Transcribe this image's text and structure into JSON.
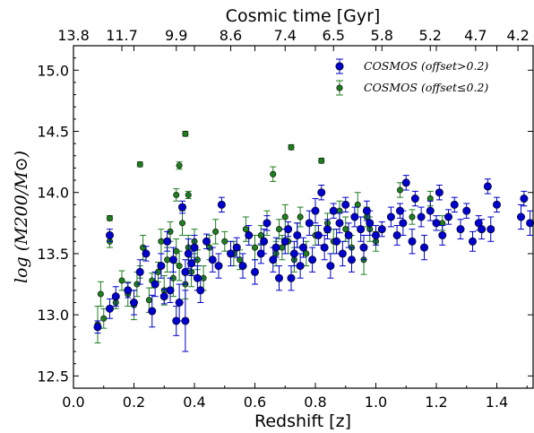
{
  "chart_data": {
    "type": "scatter",
    "title": "",
    "xlabel": "Redshift [z]",
    "ylabel": "log  (M200/M⊙)",
    "top_xlabel": "Cosmic time [Gyr]",
    "xlim": [
      0.0,
      1.52
    ],
    "ylim": [
      12.4,
      15.2
    ],
    "x_ticks": [
      0.0,
      0.2,
      0.4,
      0.6,
      0.8,
      1.0,
      1.2,
      1.4
    ],
    "x_tick_labels": [
      "0.0",
      "0.2",
      "0.4",
      "0.6",
      "0.8",
      "1.0",
      "1.2",
      "1.4"
    ],
    "y_ticks": [
      12.5,
      13.0,
      13.5,
      14.0,
      14.5,
      15.0
    ],
    "y_tick_labels": [
      "12.5",
      "13.0",
      "13.5",
      "14.0",
      "14.5",
      "15.0"
    ],
    "top_ticks": [
      {
        "z": 0.0,
        "label": "13.8"
      },
      {
        "z": 0.16,
        "label": "11.7"
      },
      {
        "z": 0.34,
        "label": "9.9"
      },
      {
        "z": 0.52,
        "label": "8.6"
      },
      {
        "z": 0.7,
        "label": "7.4"
      },
      {
        "z": 0.86,
        "label": "6.5"
      },
      {
        "z": 1.02,
        "label": "5.8"
      },
      {
        "z": 1.18,
        "label": "5.2"
      },
      {
        "z": 1.33,
        "label": "4.7"
      },
      {
        "z": 1.47,
        "label": "4.2"
      }
    ],
    "grid": false,
    "legend_position": "top-right",
    "series": [
      {
        "name": "COSMOS  (offset>0.2)",
        "color": "#0000cc",
        "marker": "large-circle",
        "points": [
          [
            0.08,
            12.9,
            0.05
          ],
          [
            0.12,
            13.05,
            0.08
          ],
          [
            0.12,
            13.65,
            0.05
          ],
          [
            0.14,
            13.15,
            0.08
          ],
          [
            0.18,
            13.2,
            0.06
          ],
          [
            0.2,
            13.1,
            0.1
          ],
          [
            0.22,
            13.35,
            0.1
          ],
          [
            0.24,
            13.5,
            0.06
          ],
          [
            0.26,
            13.03,
            0.13
          ],
          [
            0.27,
            13.25,
            0.1
          ],
          [
            0.29,
            13.4,
            0.1
          ],
          [
            0.3,
            13.15,
            0.06
          ],
          [
            0.31,
            13.6,
            0.08
          ],
          [
            0.32,
            13.2,
            0.1
          ],
          [
            0.33,
            13.45,
            0.1
          ],
          [
            0.34,
            12.95,
            0.12
          ],
          [
            0.35,
            13.1,
            0.15
          ],
          [
            0.36,
            13.88,
            0.05
          ],
          [
            0.37,
            12.95,
            0.25
          ],
          [
            0.37,
            13.35,
            0.1
          ],
          [
            0.38,
            13.5,
            0.12
          ],
          [
            0.39,
            13.42,
            0.1
          ],
          [
            0.4,
            13.55,
            0.1
          ],
          [
            0.41,
            13.3,
            0.1
          ],
          [
            0.42,
            13.2,
            0.1
          ],
          [
            0.44,
            13.6,
            0.06
          ],
          [
            0.46,
            13.45,
            0.1
          ],
          [
            0.48,
            13.4,
            0.1
          ],
          [
            0.49,
            13.9,
            0.06
          ],
          [
            0.52,
            13.5,
            0.1
          ],
          [
            0.54,
            13.55,
            0.08
          ],
          [
            0.56,
            13.4,
            0.1
          ],
          [
            0.58,
            13.65,
            0.08
          ],
          [
            0.6,
            13.35,
            0.1
          ],
          [
            0.62,
            13.5,
            0.08
          ],
          [
            0.63,
            13.6,
            0.1
          ],
          [
            0.64,
            13.75,
            0.06
          ],
          [
            0.66,
            13.45,
            0.1
          ],
          [
            0.67,
            13.55,
            0.08
          ],
          [
            0.68,
            13.3,
            0.1
          ],
          [
            0.7,
            13.6,
            0.1
          ],
          [
            0.71,
            13.7,
            0.06
          ],
          [
            0.72,
            13.3,
            0.1
          ],
          [
            0.73,
            13.5,
            0.1
          ],
          [
            0.74,
            13.65,
            0.1
          ],
          [
            0.75,
            13.4,
            0.1
          ],
          [
            0.76,
            13.55,
            0.08
          ],
          [
            0.78,
            13.75,
            0.1
          ],
          [
            0.79,
            13.45,
            0.1
          ],
          [
            0.8,
            13.85,
            0.1
          ],
          [
            0.81,
            13.65,
            0.08
          ],
          [
            0.82,
            14.0,
            0.06
          ],
          [
            0.83,
            13.55,
            0.1
          ],
          [
            0.84,
            13.7,
            0.08
          ],
          [
            0.85,
            13.4,
            0.1
          ],
          [
            0.86,
            13.85,
            0.06
          ],
          [
            0.87,
            13.6,
            0.1
          ],
          [
            0.88,
            13.75,
            0.08
          ],
          [
            0.89,
            13.5,
            0.1
          ],
          [
            0.9,
            13.9,
            0.06
          ],
          [
            0.91,
            13.65,
            0.1
          ],
          [
            0.92,
            13.45,
            0.1
          ],
          [
            0.93,
            13.8,
            0.08
          ],
          [
            0.95,
            13.7,
            0.1
          ],
          [
            0.96,
            13.55,
            0.1
          ],
          [
            0.97,
            13.85,
            0.08
          ],
          [
            0.98,
            13.75,
            0.1
          ],
          [
            1.0,
            13.65,
            0.08
          ],
          [
            1.02,
            13.7,
            0.06
          ],
          [
            1.05,
            13.8,
            0.08
          ],
          [
            1.07,
            13.65,
            0.08
          ],
          [
            1.08,
            13.85,
            0.06
          ],
          [
            1.09,
            13.75,
            0.1
          ],
          [
            1.1,
            14.08,
            0.06
          ],
          [
            1.12,
            13.6,
            0.1
          ],
          [
            1.13,
            13.95,
            0.06
          ],
          [
            1.15,
            13.8,
            0.08
          ],
          [
            1.16,
            13.55,
            0.1
          ],
          [
            1.18,
            13.85,
            0.08
          ],
          [
            1.2,
            13.75,
            0.06
          ],
          [
            1.21,
            14.0,
            0.06
          ],
          [
            1.22,
            13.65,
            0.08
          ],
          [
            1.24,
            13.8,
            0.06
          ],
          [
            1.26,
            13.9,
            0.06
          ],
          [
            1.28,
            13.7,
            0.08
          ],
          [
            1.3,
            13.85,
            0.06
          ],
          [
            1.32,
            13.6,
            0.08
          ],
          [
            1.34,
            13.75,
            0.06
          ],
          [
            1.35,
            13.7,
            0.08
          ],
          [
            1.37,
            14.05,
            0.06
          ],
          [
            1.38,
            13.7,
            0.1
          ],
          [
            1.4,
            13.9,
            0.06
          ],
          [
            1.48,
            13.8,
            0.1
          ],
          [
            1.49,
            13.95,
            0.06
          ],
          [
            1.51,
            13.75,
            0.1
          ]
        ]
      },
      {
        "name": "COSMOS  (offset≤0.2)",
        "color": "#1f7f1f",
        "marker": "small-circle",
        "points": [
          [
            0.08,
            12.92,
            0.15
          ],
          [
            0.09,
            13.17,
            0.1
          ],
          [
            0.1,
            12.97,
            0.08
          ],
          [
            0.12,
            13.79,
            0.02
          ],
          [
            0.12,
            13.6,
            0.05
          ],
          [
            0.14,
            13.1,
            0.05
          ],
          [
            0.16,
            13.28,
            0.08
          ],
          [
            0.18,
            13.17,
            0.1
          ],
          [
            0.2,
            13.08,
            0.12
          ],
          [
            0.21,
            13.25,
            0.1
          ],
          [
            0.22,
            14.23,
            0.02
          ],
          [
            0.22,
            13.35,
            0.05
          ],
          [
            0.23,
            13.55,
            0.1
          ],
          [
            0.25,
            13.12,
            0.1
          ],
          [
            0.26,
            13.28,
            0.06
          ],
          [
            0.28,
            13.35,
            0.08
          ],
          [
            0.29,
            13.6,
            0.1
          ],
          [
            0.3,
            13.2,
            0.12
          ],
          [
            0.31,
            13.45,
            0.1
          ],
          [
            0.32,
            13.68,
            0.08
          ],
          [
            0.33,
            13.3,
            0.15
          ],
          [
            0.34,
            13.52,
            0.1
          ],
          [
            0.34,
            13.98,
            0.05
          ],
          [
            0.35,
            14.22,
            0.03
          ],
          [
            0.35,
            13.4,
            0.12
          ],
          [
            0.36,
            13.75,
            0.1
          ],
          [
            0.37,
            14.48,
            0.02
          ],
          [
            0.37,
            13.25,
            0.12
          ],
          [
            0.38,
            13.98,
            0.03
          ],
          [
            0.38,
            13.55,
            0.1
          ],
          [
            0.39,
            13.35,
            0.12
          ],
          [
            0.4,
            13.6,
            0.1
          ],
          [
            0.41,
            13.45,
            0.08
          ],
          [
            0.43,
            13.3,
            0.1
          ],
          [
            0.45,
            13.55,
            0.1
          ],
          [
            0.47,
            13.68,
            0.1
          ],
          [
            0.5,
            13.6,
            0.08
          ],
          [
            0.53,
            13.5,
            0.1
          ],
          [
            0.55,
            13.45,
            0.08
          ],
          [
            0.57,
            13.7,
            0.1
          ],
          [
            0.6,
            13.55,
            0.1
          ],
          [
            0.62,
            13.65,
            0.08
          ],
          [
            0.64,
            13.75,
            0.1
          ],
          [
            0.66,
            14.15,
            0.06
          ],
          [
            0.67,
            13.5,
            0.1
          ],
          [
            0.68,
            13.7,
            0.08
          ],
          [
            0.69,
            13.55,
            0.1
          ],
          [
            0.7,
            13.8,
            0.1
          ],
          [
            0.71,
            13.6,
            0.1
          ],
          [
            0.72,
            14.37,
            0.02
          ],
          [
            0.73,
            13.45,
            0.1
          ],
          [
            0.74,
            13.65,
            0.1
          ],
          [
            0.75,
            13.8,
            0.08
          ],
          [
            0.77,
            13.5,
            0.1
          ],
          [
            0.8,
            13.65,
            0.08
          ],
          [
            0.82,
            14.26,
            0.02
          ],
          [
            0.84,
            13.75,
            0.08
          ],
          [
            0.86,
            13.6,
            0.1
          ],
          [
            0.88,
            13.85,
            0.08
          ],
          [
            0.9,
            13.7,
            0.1
          ],
          [
            0.92,
            13.55,
            0.1
          ],
          [
            0.94,
            13.9,
            0.1
          ],
          [
            0.96,
            13.45,
            0.12
          ],
          [
            0.97,
            13.8,
            0.08
          ],
          [
            0.98,
            13.7,
            0.1
          ],
          [
            1.0,
            13.6,
            0.08
          ],
          [
            1.08,
            14.02,
            0.06
          ],
          [
            1.12,
            13.8,
            0.06
          ],
          [
            1.18,
            13.95,
            0.06
          ],
          [
            1.22,
            13.75,
            0.06
          ]
        ]
      }
    ]
  }
}
